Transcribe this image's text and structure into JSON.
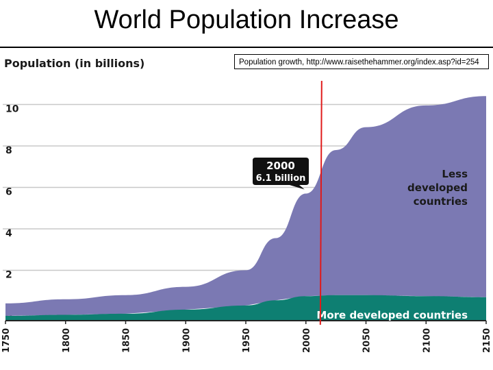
{
  "slide": {
    "title": "World Population Increase"
  },
  "caption": "Population growth, http://www.raisethehammer.org/index.asp?id=254",
  "chart_data": {
    "type": "area",
    "title": "",
    "ylabel": "Population (in billions)",
    "xlabel": "",
    "xlim": [
      1750,
      2150
    ],
    "ylim": [
      0,
      11
    ],
    "y_ticks": [
      0,
      2,
      4,
      6,
      8,
      10
    ],
    "x_ticks": [
      1750,
      1800,
      1850,
      1900,
      1950,
      2000,
      2050,
      2100,
      2150
    ],
    "stacked": true,
    "series": [
      {
        "name": "More developed countries",
        "color": "#0e7f72",
        "x": [
          1750,
          1800,
          1850,
          1900,
          1950,
          1975,
          2000,
          2025,
          2050,
          2100,
          2150
        ],
        "values": [
          0.2,
          0.25,
          0.3,
          0.5,
          0.7,
          0.95,
          1.15,
          1.2,
          1.2,
          1.15,
          1.1
        ]
      },
      {
        "name": "Less developed countries",
        "color": "#7b79b3",
        "x": [
          1750,
          1800,
          1850,
          1900,
          1950,
          1975,
          2000,
          2025,
          2050,
          2100,
          2150
        ],
        "values": [
          0.6,
          0.75,
          0.9,
          1.1,
          1.7,
          3.0,
          4.95,
          7.0,
          8.1,
          9.2,
          9.7
        ]
      }
    ],
    "annotations": [
      {
        "kind": "callout",
        "x": 2000,
        "y": 6.1,
        "line1": "2000",
        "line2": "6.1 billion"
      },
      {
        "kind": "vertical-line",
        "x": 2012,
        "color": "#e01a1a"
      }
    ],
    "region_labels": {
      "less": [
        "Less",
        "developed",
        "countries"
      ],
      "more": "More developed countries"
    },
    "grid": true
  }
}
